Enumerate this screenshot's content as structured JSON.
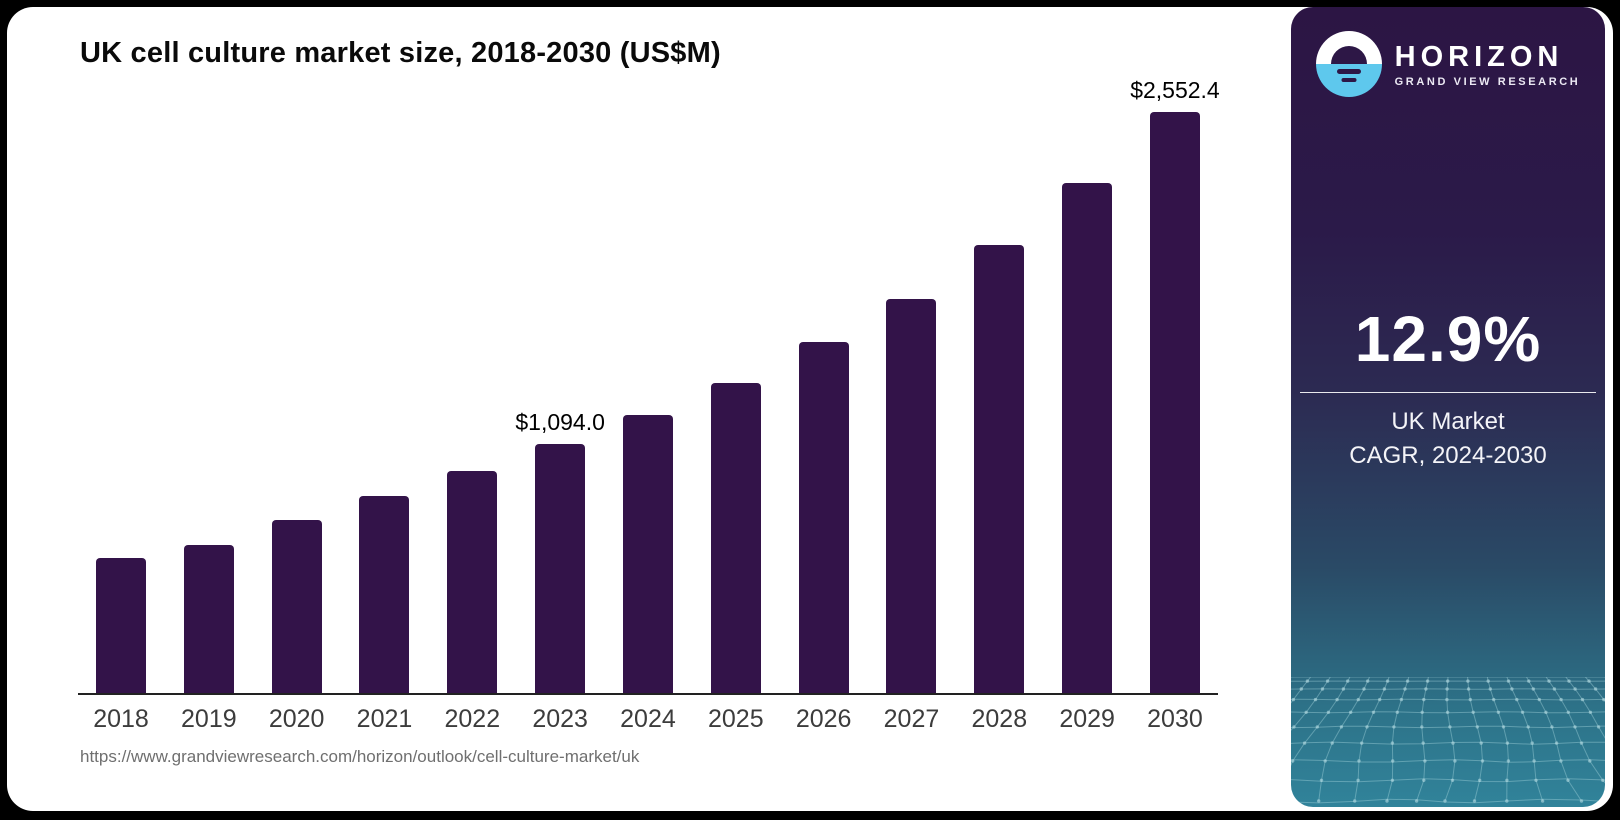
{
  "title": "UK cell culture market size, 2018-2030 (US$M)",
  "source_url": "https://www.grandviewresearch.com/horizon/outlook/cell-culture-market/uk",
  "brand": {
    "name": "HORIZON",
    "subtitle": "GRAND VIEW RESEARCH",
    "logo_icon": "horizon-sun-icon"
  },
  "stat": {
    "value": "12.9%",
    "line1": "UK Market",
    "line2": "CAGR, 2024-2030"
  },
  "colors": {
    "bar": "#331349",
    "panel_purple": "#2c1544",
    "panel_teal": "#2d7389",
    "logo_blue": "#5ec8ed",
    "axis_label": "#3c3c3c",
    "url_gray": "#6f6f6f"
  },
  "chart_data": {
    "type": "bar",
    "title": "UK cell culture market size, 2018-2030 (US$M)",
    "unit": "US$M",
    "categories": [
      "2018",
      "2019",
      "2020",
      "2021",
      "2022",
      "2023",
      "2024",
      "2025",
      "2026",
      "2027",
      "2028",
      "2029",
      "2030"
    ],
    "values": [
      595,
      652,
      762,
      866,
      976,
      1094.0,
      1220,
      1360,
      1540,
      1733,
      1968,
      2242,
      2552.4
    ],
    "point_labels": [
      "",
      "",
      "",
      "",
      "",
      "$1,094.0",
      "",
      "",
      "",
      "",
      "",
      "",
      "$2,552.4"
    ],
    "labeled_points": [
      {
        "category": "2023",
        "value": 1094.0,
        "label": "$1,094.0"
      },
      {
        "category": "2030",
        "value": 2552.4,
        "label": "$2,552.4"
      }
    ],
    "xlabel": "",
    "ylabel": "",
    "ylim": [
      0,
      2650
    ],
    "grid": false,
    "legend": false,
    "bar_color": "#331349",
    "note": "values for unlabeled years estimated from bar heights"
  }
}
